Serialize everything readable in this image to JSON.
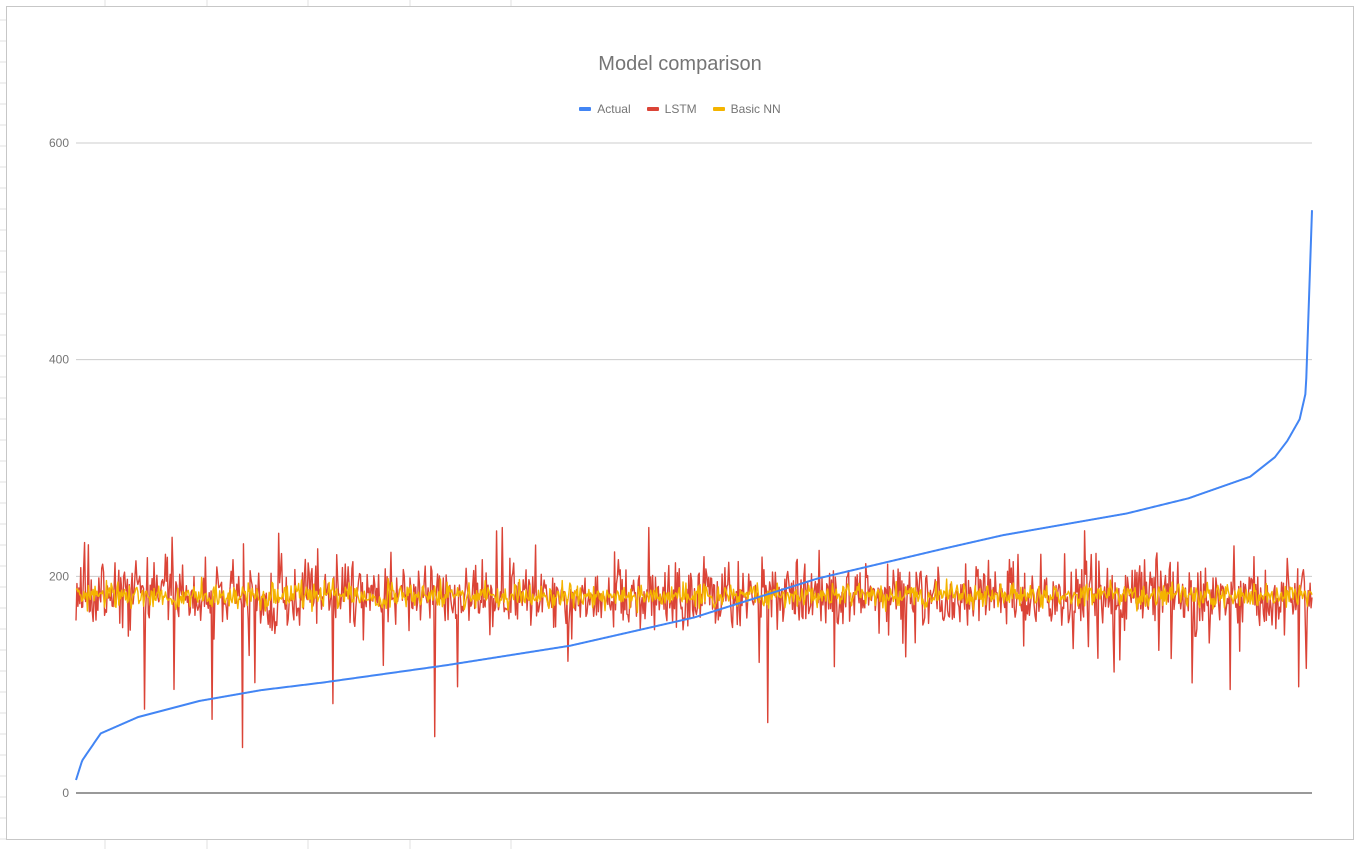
{
  "chart_data": {
    "type": "line",
    "title": "Model comparison",
    "xlabel": "",
    "ylabel": "",
    "ylim": [
      0,
      600
    ],
    "yticks": [
      0,
      200,
      400,
      600
    ],
    "grid": true,
    "legend_position": "top",
    "n_points": 1300,
    "series": [
      {
        "name": "Actual",
        "color": "#4285f4",
        "sorted_ascending": true,
        "x_fraction_anchors": [
          0,
          0.005,
          0.02,
          0.05,
          0.1,
          0.15,
          0.2,
          0.3,
          0.4,
          0.5,
          0.6,
          0.7,
          0.75,
          0.8,
          0.85,
          0.9,
          0.95,
          0.97,
          0.98,
          0.99,
          0.995,
          1.0
        ],
        "values_at_anchors": [
          12,
          30,
          55,
          70,
          85,
          95,
          102,
          118,
          136,
          162,
          198,
          225,
          238,
          248,
          258,
          272,
          292,
          310,
          325,
          345,
          370,
          538
        ]
      },
      {
        "name": "LSTM",
        "color": "#db4437",
        "mean": 182,
        "typical_range": [
          150,
          230
        ],
        "min_value": 42,
        "max_value": 245
      },
      {
        "name": "Basic NN",
        "color": "#f4b400",
        "mean": 182,
        "typical_range": [
          170,
          195
        ]
      }
    ]
  }
}
